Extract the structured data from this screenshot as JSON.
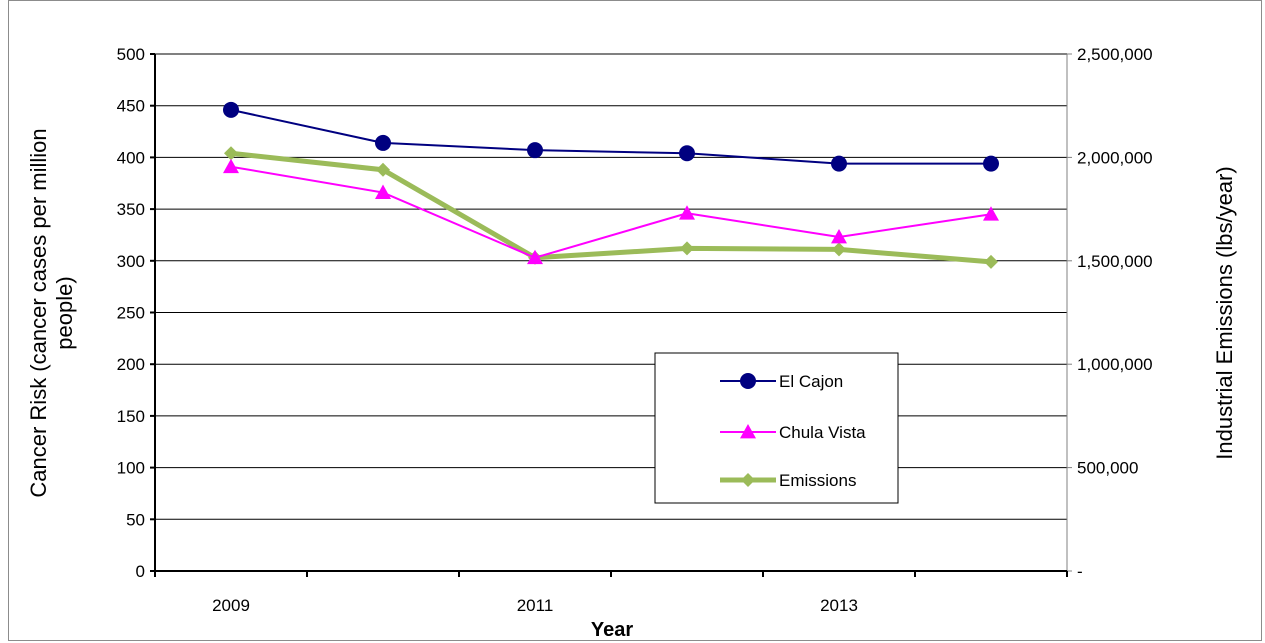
{
  "chart_data": {
    "type": "line",
    "title": "",
    "xlabel": "Year",
    "ylabel": "Cancer Risk (cancer cases per million people)",
    "ylabel_lines": [
      "Cancer Risk (cancer cases per million",
      "people)"
    ],
    "y2label": "Industrial Emissions (lbs/year)",
    "x": [
      2009,
      2010,
      2011,
      2012,
      2013,
      2014
    ],
    "x_tick_labels": [
      "2009",
      "",
      "2011",
      "",
      "2013",
      ""
    ],
    "ylim": [
      0,
      500
    ],
    "y_ticks": [
      0,
      50,
      100,
      150,
      200,
      250,
      300,
      350,
      400,
      450,
      500
    ],
    "y2lim": [
      0,
      2500000
    ],
    "y2_tick_labels": [
      "-",
      "500,000",
      "1,000,000",
      "1,500,000",
      "2,000,000",
      "2,500,000"
    ],
    "grid": true,
    "legend_position": "center-right",
    "series": [
      {
        "name": "El Cajon",
        "axis": "left",
        "marker": "circle",
        "color": "#000080",
        "values": [
          446,
          414,
          407,
          404,
          394,
          394
        ]
      },
      {
        "name": "Chula Vista",
        "axis": "left",
        "marker": "triangle",
        "color": "#ff00ff",
        "values": [
          391,
          366,
          303,
          346,
          323,
          345
        ]
      },
      {
        "name": "Emissions",
        "axis": "right",
        "marker": "diamond",
        "color": "#9bbb59",
        "values": [
          2020000,
          1940000,
          1515000,
          1560000,
          1555000,
          1495000
        ]
      }
    ]
  }
}
